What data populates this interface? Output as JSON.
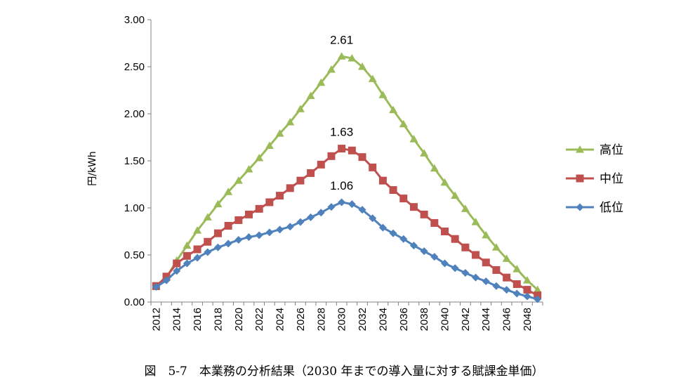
{
  "chart_data": {
    "type": "line",
    "title": "",
    "xlabel": "",
    "ylabel": "円/kWh",
    "ylim": [
      0,
      3.0
    ],
    "yticks": [
      "0.00",
      "0.50",
      "1.00",
      "1.50",
      "2.00",
      "2.50",
      "3.00"
    ],
    "xticks": [
      "2012",
      "2014",
      "2016",
      "2018",
      "2020",
      "2022",
      "2024",
      "2026",
      "2028",
      "2030",
      "2032",
      "2034",
      "2036",
      "2038",
      "2040",
      "2042",
      "2044",
      "2046",
      "2048"
    ],
    "x": [
      2012,
      2013,
      2014,
      2015,
      2016,
      2017,
      2018,
      2019,
      2020,
      2021,
      2022,
      2023,
      2024,
      2025,
      2026,
      2027,
      2028,
      2029,
      2030,
      2031,
      2032,
      2033,
      2034,
      2035,
      2036,
      2037,
      2038,
      2039,
      2040,
      2041,
      2042,
      2043,
      2044,
      2045,
      2046,
      2047,
      2048,
      2049
    ],
    "grid": false,
    "legend_position": "right",
    "series": [
      {
        "name": "高位",
        "color": "#9BBB59",
        "marker": "triangle",
        "values": [
          0.16,
          0.26,
          0.44,
          0.6,
          0.76,
          0.9,
          1.04,
          1.17,
          1.29,
          1.41,
          1.53,
          1.66,
          1.79,
          1.91,
          2.05,
          2.19,
          2.33,
          2.47,
          2.61,
          2.59,
          2.5,
          2.37,
          2.2,
          2.04,
          1.89,
          1.73,
          1.58,
          1.42,
          1.27,
          1.13,
          0.99,
          0.85,
          0.71,
          0.58,
          0.46,
          0.35,
          0.23,
          0.13
        ]
      },
      {
        "name": "中位",
        "color": "#C0504D",
        "marker": "square",
        "values": [
          0.17,
          0.27,
          0.41,
          0.49,
          0.56,
          0.64,
          0.73,
          0.81,
          0.87,
          0.93,
          0.99,
          1.06,
          1.13,
          1.21,
          1.29,
          1.37,
          1.46,
          1.55,
          1.63,
          1.61,
          1.54,
          1.43,
          1.29,
          1.19,
          1.1,
          1.01,
          0.93,
          0.84,
          0.75,
          0.67,
          0.58,
          0.5,
          0.42,
          0.34,
          0.26,
          0.19,
          0.13,
          0.07
        ]
      },
      {
        "name": "低位",
        "color": "#4F81BD",
        "marker": "diamond",
        "values": [
          0.16,
          0.23,
          0.33,
          0.41,
          0.47,
          0.53,
          0.58,
          0.62,
          0.66,
          0.69,
          0.71,
          0.74,
          0.77,
          0.8,
          0.85,
          0.9,
          0.95,
          1.01,
          1.06,
          1.04,
          0.98,
          0.89,
          0.79,
          0.73,
          0.67,
          0.6,
          0.54,
          0.48,
          0.41,
          0.36,
          0.31,
          0.26,
          0.22,
          0.17,
          0.13,
          0.09,
          0.06,
          0.03
        ]
      }
    ],
    "annotations": [
      {
        "series": 0,
        "x": 2030,
        "text": "2.61"
      },
      {
        "series": 1,
        "x": 2030,
        "text": "1.63"
      },
      {
        "series": 2,
        "x": 2030,
        "text": "1.06"
      }
    ]
  },
  "caption": "図　5-7　本業務の分析結果（2030 年までの導入量に対する賦課金単価）"
}
